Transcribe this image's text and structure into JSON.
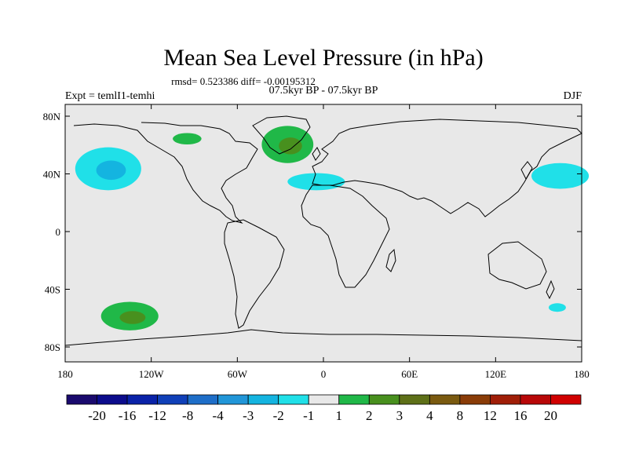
{
  "chart_data": {
    "type": "heatmap",
    "title": "Mean Sea Level Pressure (in hPa)",
    "stats_line": "rmsd= 0.523386 diff= -0.00195312",
    "subtitle": "07.5kyr BP - 07.5kyr BP",
    "left_label": "Expt = temlI1-temhi",
    "right_label": "DJF",
    "x_ticks": [
      "180",
      "120W",
      "60W",
      "0",
      "60E",
      "120E",
      "180"
    ],
    "y_ticks": [
      "80N",
      "40N",
      "0",
      "40S",
      "80S"
    ],
    "xlim": [
      -180,
      180
    ],
    "ylim": [
      -90,
      90
    ],
    "colorbar": {
      "labels": [
        "-20",
        "-16",
        "-12",
        "-8",
        "-4",
        "-3",
        "-2",
        "-1",
        "1",
        "2",
        "3",
        "4",
        "8",
        "12",
        "16",
        "20"
      ],
      "colors": [
        "#1a0a6e",
        "#0c0c8c",
        "#0a22a8",
        "#1040b8",
        "#1e6ec8",
        "#2196d8",
        "#14b4e0",
        "#20e0e8",
        "#e8e8e8",
        "#20b848",
        "#48901e",
        "#5e7018",
        "#7a5a10",
        "#8a3c08",
        "#a01e08",
        "#b80808",
        "#d00000"
      ]
    },
    "ocean_color": "#e8e8e8",
    "anomaly_regions": [
      {
        "name": "north-pacific-low",
        "lon": -150,
        "lat": 45,
        "rlon": 23,
        "rlat": 15,
        "level": "-1",
        "core_level": "-2"
      },
      {
        "name": "north-atlantic-high",
        "lon": -25,
        "lat": 62,
        "rlon": 18,
        "rlat": 13,
        "level": "1",
        "core_level": "2"
      },
      {
        "name": "canada-high",
        "lon": -95,
        "lat": 66,
        "rlon": 10,
        "rlat": 4,
        "level": "1"
      },
      {
        "name": "subtropical-atlantic-low",
        "lon": -5,
        "lat": 36,
        "rlon": 20,
        "rlat": 6,
        "level": "-1"
      },
      {
        "name": "north-west-pacific-low",
        "lon": 165,
        "lat": 40,
        "rlon": 20,
        "rlat": 9,
        "level": "-1"
      },
      {
        "name": "south-pacific-high",
        "lon": -135,
        "lat": -58,
        "rlon": 20,
        "rlat": 10,
        "level": "1",
        "core_level": "2"
      },
      {
        "name": "tasman-low",
        "lon": 163,
        "lat": -52,
        "rlon": 6,
        "rlat": 3,
        "level": "-1"
      }
    ]
  }
}
